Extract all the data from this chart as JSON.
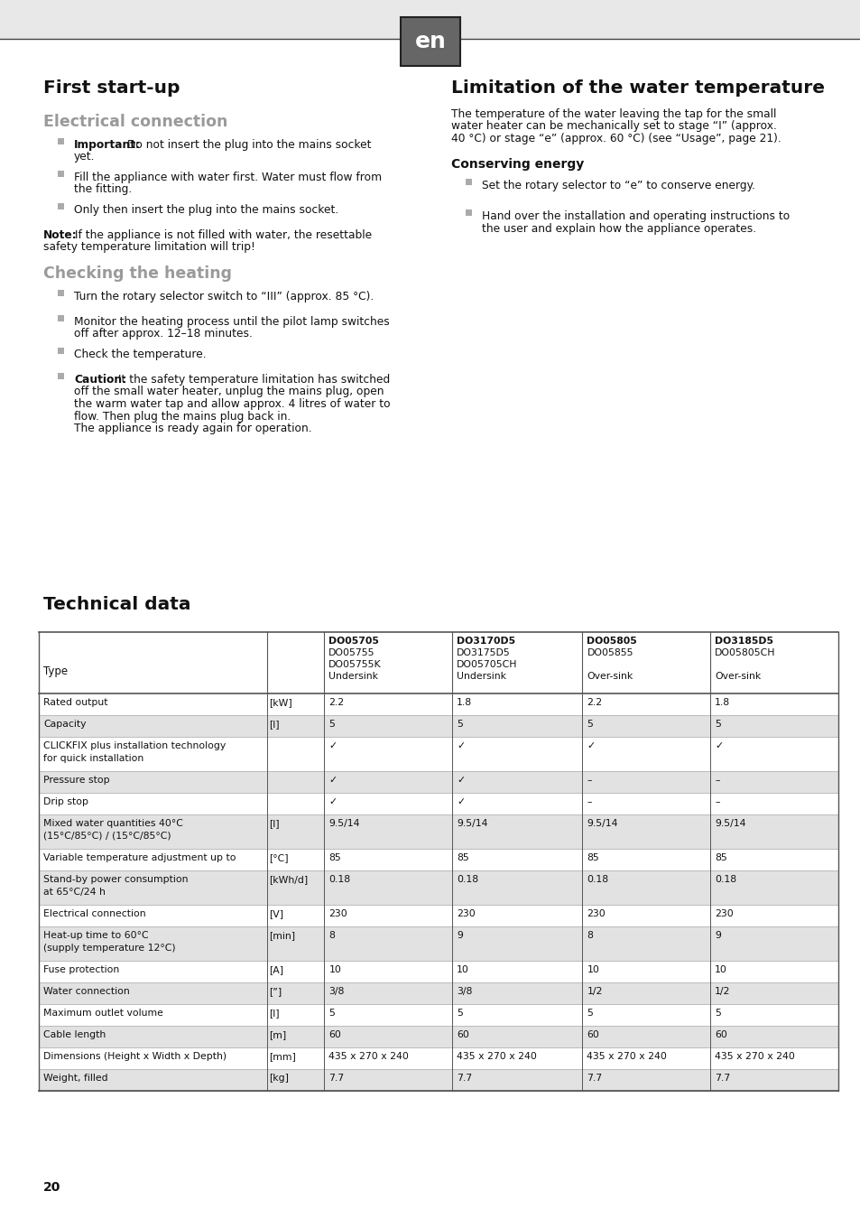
{
  "bg_color": "#e8e8e8",
  "page_bg": "#ffffff",
  "header_bg": "#666666",
  "header_text": "en",
  "title_left": "First start-up",
  "subtitle_electrical": "Electrical connection",
  "subtitle_checking": "Checking the heating",
  "title_right": "Limitation of the water temperature",
  "subtitle_technical": "Technical data",
  "subtitle_conserving": "Conserving energy",
  "right_para1_lines": [
    "The temperature of the water leaving the tap for the small",
    "water heater can be mechanically set to stage “I” (approx.",
    "40 °C) or stage “e” (approx. 60 °C) (see “Usage”, page 21)."
  ],
  "conserving_bullet": "Set the rotary selector to “e” to conserve energy.",
  "hand_over_lines": [
    "Hand over the installation and operating instructions to",
    "the user and explain how the appliance operates."
  ],
  "table_rows": [
    {
      "label": "Rated output",
      "unit": "[kW]",
      "vals": [
        "2.2",
        "1.8",
        "2.2",
        "1.8"
      ],
      "shaded": false,
      "label_bold": false
    },
    {
      "label": "Capacity",
      "unit": "[l]",
      "vals": [
        "5",
        "5",
        "5",
        "5"
      ],
      "shaded": true,
      "label_bold": false
    },
    {
      "label": "CLICKFIX plus installation technology\nfor quick installation",
      "unit": "",
      "vals": [
        "✓",
        "✓",
        "✓",
        "✓"
      ],
      "shaded": false,
      "label_bold": false
    },
    {
      "label": "Pressure stop",
      "unit": "",
      "vals": [
        "✓",
        "✓",
        "–",
        "–"
      ],
      "shaded": true,
      "label_bold": false
    },
    {
      "label": "Drip stop",
      "unit": "",
      "vals": [
        "✓",
        "✓",
        "–",
        "–"
      ],
      "shaded": false,
      "label_bold": false
    },
    {
      "label": "Mixed water quantities 40°C\n(15°C/85°C) / (15°C/85°C)",
      "unit": "[l]",
      "vals": [
        "9.5/14",
        "9.5/14",
        "9.5/14",
        "9.5/14"
      ],
      "shaded": true,
      "label_bold": false
    },
    {
      "label": "Variable temperature adjustment up to",
      "unit": "[°C]",
      "vals": [
        "85",
        "85",
        "85",
        "85"
      ],
      "shaded": false,
      "label_bold": false
    },
    {
      "label": "Stand-by power consumption\nat 65°C/24 h",
      "unit": "[kWh/d]",
      "vals": [
        "0.18",
        "0.18",
        "0.18",
        "0.18"
      ],
      "shaded": true,
      "label_bold": false
    },
    {
      "label": "Electrical connection",
      "unit": "[V]",
      "vals": [
        "230",
        "230",
        "230",
        "230"
      ],
      "shaded": false,
      "label_bold": false
    },
    {
      "label": "Heat-up time to 60°C\n(supply temperature 12°C)",
      "unit": "[min]",
      "vals": [
        "8",
        "9",
        "8",
        "9"
      ],
      "shaded": true,
      "label_bold": false
    },
    {
      "label": "Fuse protection",
      "unit": "[A]",
      "vals": [
        "10",
        "10",
        "10",
        "10"
      ],
      "shaded": false,
      "label_bold": false
    },
    {
      "label": "Water connection",
      "unit": "[”]",
      "vals": [
        "3/8",
        "3/8",
        "1/2",
        "1/2"
      ],
      "shaded": true,
      "label_bold": false
    },
    {
      "label": "Maximum outlet volume",
      "unit": "[l]",
      "vals": [
        "5",
        "5",
        "5",
        "5"
      ],
      "shaded": false,
      "label_bold": false
    },
    {
      "label": "Cable length",
      "unit": "[m]",
      "vals": [
        "60",
        "60",
        "60",
        "60"
      ],
      "shaded": true,
      "label_bold": false
    },
    {
      "label": "Dimensions (Height x Width x Depth)",
      "unit": "[mm]",
      "vals": [
        "435 x 270 x 240",
        "435 x 270 x 240",
        "435 x 270 x 240",
        "435 x 270 x 240"
      ],
      "shaded": false,
      "label_bold": false
    },
    {
      "label": "Weight, filled",
      "unit": "[kg]",
      "vals": [
        "7.7",
        "7.7",
        "7.7",
        "7.7"
      ],
      "shaded": true,
      "label_bold": false
    }
  ],
  "page_number": "20",
  "subtitle_color": "#9a9a9a",
  "bullet_gray": "#aaaaaa",
  "text_color": "#111111",
  "line_color_dark": "#555555",
  "line_color_light": "#bbbbbb"
}
